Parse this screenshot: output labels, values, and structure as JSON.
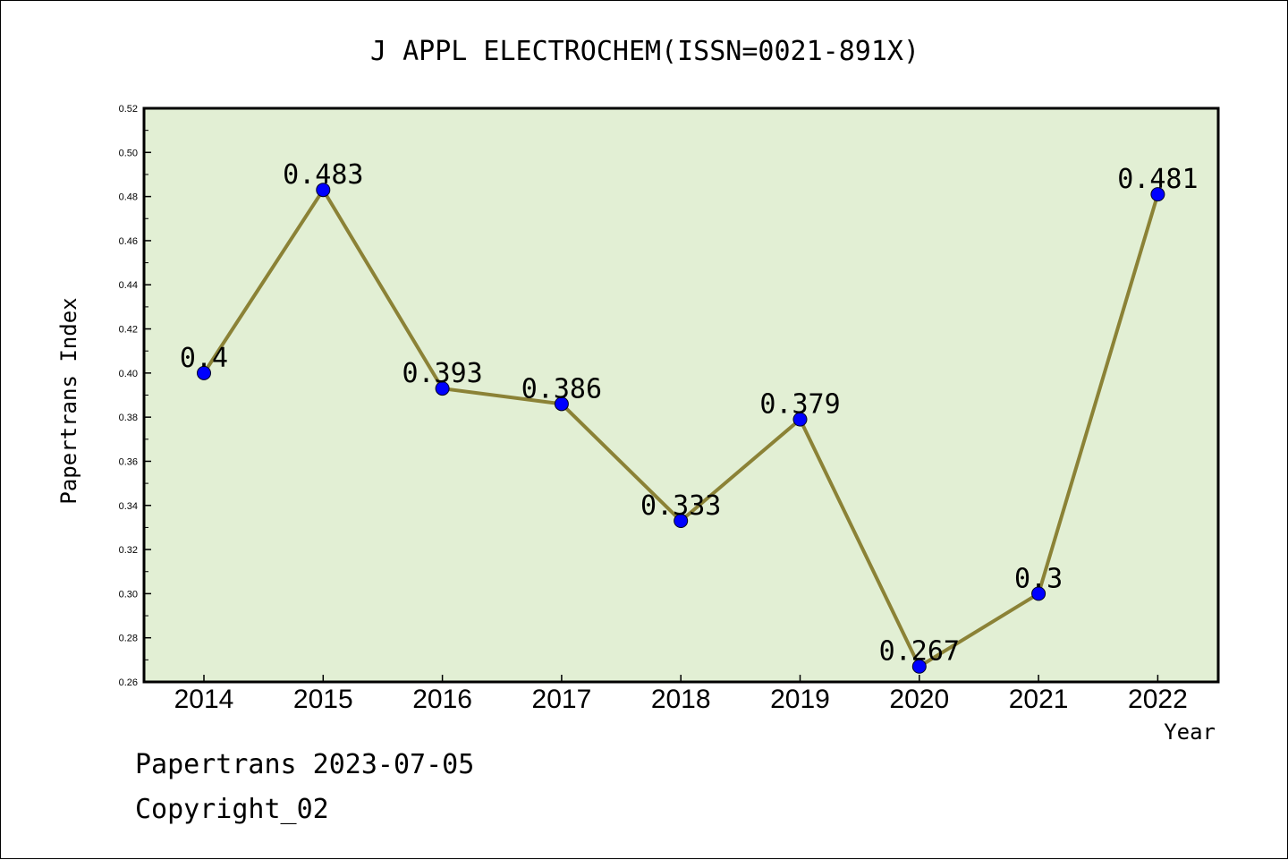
{
  "chart_data": {
    "type": "line",
    "title": "J APPL ELECTROCHEM(ISSN=0021-891X)",
    "xlabel": "Year",
    "ylabel": "Papertrans Index",
    "categories": [
      "2014",
      "2015",
      "2016",
      "2017",
      "2018",
      "2019",
      "2020",
      "2021",
      "2022"
    ],
    "values": [
      0.4,
      0.483,
      0.393,
      0.386,
      0.333,
      0.379,
      0.267,
      0.3,
      0.481
    ],
    "data_labels": [
      "0.4",
      "0.483",
      "0.393",
      "0.386",
      "0.333",
      "0.379",
      "0.267",
      "0.3",
      "0.481"
    ],
    "ylim": [
      0.26,
      0.52
    ],
    "yticks": [
      "0.26",
      "0.28",
      "0.30",
      "0.32",
      "0.34",
      "0.36",
      "0.38",
      "0.40",
      "0.42",
      "0.44",
      "0.46",
      "0.48",
      "0.50",
      "0.52"
    ],
    "grid": false,
    "colors": {
      "plot_background": "#e2efd4",
      "line": "#8b8236",
      "marker": "#0000ff"
    }
  },
  "footer": {
    "date_line": "Papertrans 2023-07-05",
    "copyright": "Copyright_02"
  }
}
